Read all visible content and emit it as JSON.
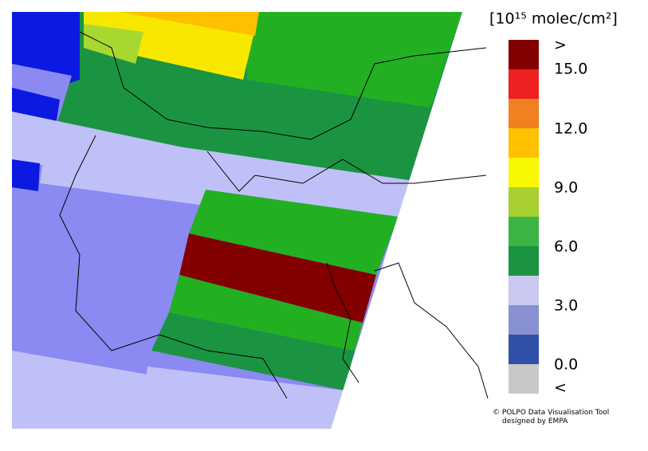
{
  "legend": {
    "title": "[10¹⁵ molec/cm²]",
    "labels": [
      ">",
      "15.0",
      "12.0",
      "9.0",
      "6.0",
      "3.0",
      "0.0",
      "<"
    ]
  },
  "credit": [
    "© POLPO Data Visualisation Tool",
    "designed by EMPA"
  ]
}
